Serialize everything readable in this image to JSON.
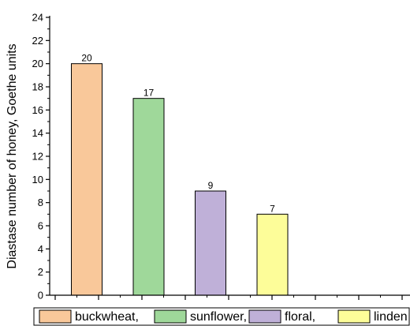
{
  "chart_data": {
    "type": "bar",
    "categories": [
      "buckwheat,",
      "sunflower,",
      "floral,",
      "linden"
    ],
    "values": [
      20,
      17,
      9,
      7
    ],
    "data_labels": [
      "20",
      "17",
      "9",
      "7"
    ],
    "colors": [
      "#f9c89a",
      "#9fd89a",
      "#bfb0d8",
      "#fdfd99"
    ],
    "ylabel": "Diastase number of honey, Goethe units",
    "xlabel": "",
    "ylim": [
      0,
      24
    ],
    "yticks": [
      0,
      2,
      4,
      6,
      8,
      10,
      12,
      14,
      16,
      18,
      20,
      22,
      24
    ],
    "legend_position": "bottom",
    "grid": false
  }
}
